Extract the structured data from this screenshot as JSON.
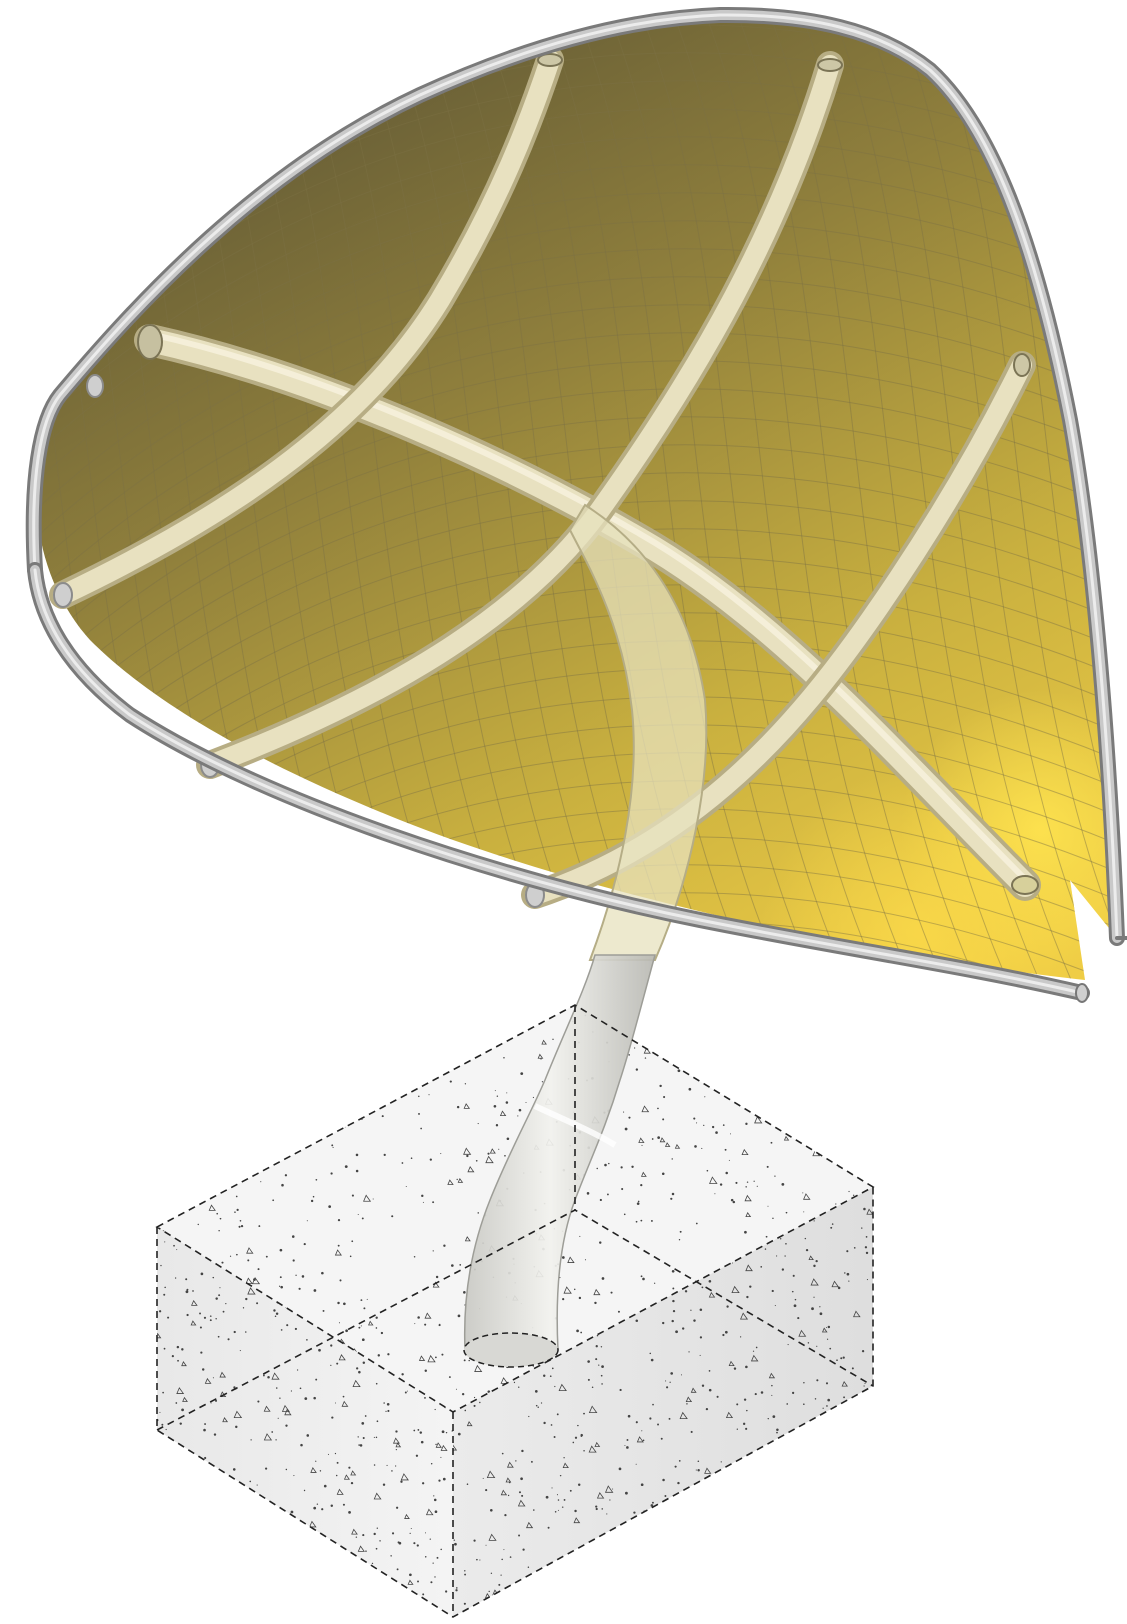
{
  "colors": {
    "background": "#ffffff",
    "membrane_dark": "#6e6337",
    "membrane_mid": "#b9a23e",
    "membrane_light": "#f3d24a",
    "mesh_line": "#7f7446",
    "rib_fill": "#e9e2bf",
    "edge_cable": "#9a9a9a",
    "edge_cable_highlight": "#d6d6d6",
    "column": "#dcdcd6",
    "column_shadow": "#a9a9a3",
    "concrete": "#f2f2f2",
    "concrete_side": "#e4e4e4",
    "speckle": "#555555",
    "dashed_edge": "#222222"
  }
}
